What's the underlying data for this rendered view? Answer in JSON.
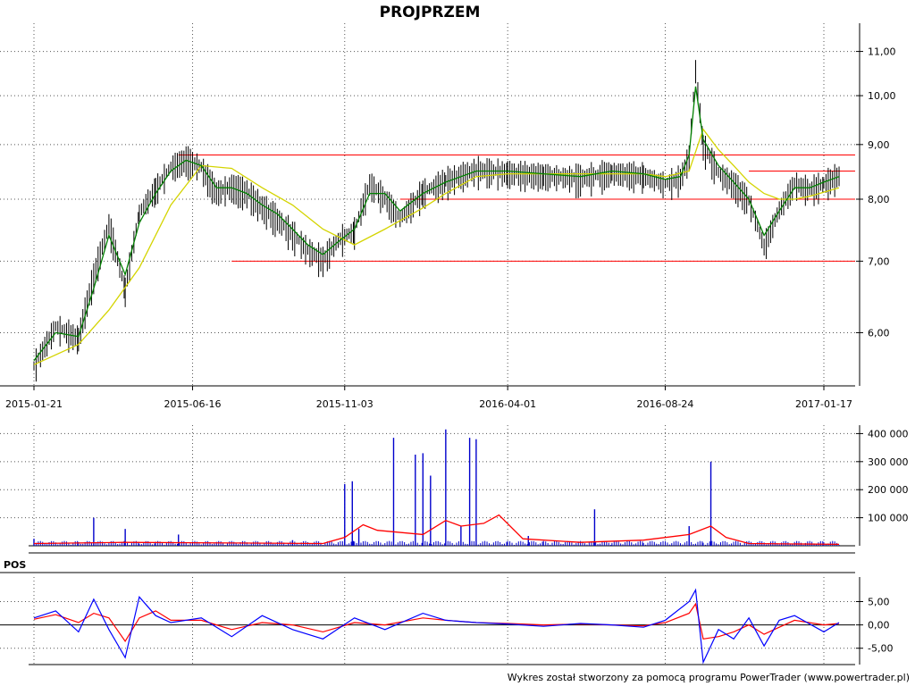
{
  "title": "PROJPRZEM",
  "footer": "Wykres został stworzony za pomocą programu PowerTrader (www.powertrader.pl)",
  "colors": {
    "price_bars": "#000000",
    "ma_short": "#008000",
    "ma_long": "#d4d400",
    "support_lines": "#ff0000",
    "volume_bars": "#0000cc",
    "volume_avg": "#ff0000",
    "pos_line": "#0000ff",
    "pos_signal": "#ff0000",
    "grid": "#555555"
  },
  "chart_data": [
    {
      "panel": "price",
      "type": "line",
      "title": "PROJPRZEM",
      "x_ticks": [
        "2015-01-21",
        "2015-06-16",
        "2015-11-03",
        "2016-04-01",
        "2016-08-24",
        "2017-01-17"
      ],
      "y_ticks": [
        "11,00",
        "10,00",
        "9,00",
        "8,00",
        "7,00",
        "6,00"
      ],
      "y_scale": "log",
      "ylim": [
        5.35,
        11.6
      ],
      "grid": true,
      "series": [
        {
          "style": "bar",
          "x": [
            "2015-01-21",
            "2015-02-10",
            "2015-03-03",
            "2015-03-17",
            "2015-03-31",
            "2015-04-15",
            "2015-04-28",
            "2015-05-13",
            "2015-05-27",
            "2015-06-10",
            "2015-06-24",
            "2015-07-08",
            "2015-07-22",
            "2015-08-05",
            "2015-08-19",
            "2015-09-02",
            "2015-09-16",
            "2015-09-30",
            "2015-10-14",
            "2015-10-28",
            "2015-11-12",
            "2015-11-26",
            "2015-12-10",
            "2015-12-24",
            "2016-01-14",
            "2016-02-04",
            "2016-03-03",
            "2016-04-01",
            "2016-05-04",
            "2016-06-07",
            "2016-07-06",
            "2016-08-04",
            "2016-08-24",
            "2016-09-07",
            "2016-09-15",
            "2016-09-21",
            "2016-09-28",
            "2016-10-12",
            "2016-10-26",
            "2016-11-09",
            "2016-11-23",
            "2016-12-07",
            "2016-12-21",
            "2017-01-04",
            "2017-01-17",
            "2017-01-31"
          ],
          "values": [
            5.6,
            6.1,
            5.95,
            6.8,
            7.6,
            6.6,
            7.8,
            8.2,
            8.6,
            8.75,
            8.6,
            8.15,
            8.25,
            8.15,
            7.9,
            7.7,
            7.45,
            7.2,
            7.05,
            7.35,
            7.5,
            8.3,
            8.05,
            7.7,
            8.15,
            8.35,
            8.55,
            8.5,
            8.45,
            8.4,
            8.5,
            8.45,
            8.3,
            8.4,
            8.8,
            10.6,
            9.0,
            8.5,
            8.3,
            8.0,
            7.25,
            7.85,
            8.3,
            8.2,
            8.3,
            8.45
          ]
        },
        {
          "name": "",
          "style": "line-short-ma",
          "x": [
            "2015-01-21",
            "2015-02-10",
            "2015-03-03",
            "2015-03-17",
            "2015-03-31",
            "2015-04-15",
            "2015-04-28",
            "2015-05-13",
            "2015-05-27",
            "2015-06-10",
            "2015-06-24",
            "2015-07-08",
            "2015-07-22",
            "2015-08-05",
            "2015-08-19",
            "2015-09-02",
            "2015-09-16",
            "2015-09-30",
            "2015-10-14",
            "2015-10-28",
            "2015-11-12",
            "2015-11-26",
            "2015-12-10",
            "2015-12-24",
            "2016-01-14",
            "2016-02-04",
            "2016-03-03",
            "2016-04-01",
            "2016-05-04",
            "2016-06-07",
            "2016-07-06",
            "2016-08-04",
            "2016-08-24",
            "2016-09-07",
            "2016-09-15",
            "2016-09-21",
            "2016-09-28",
            "2016-10-12",
            "2016-10-26",
            "2016-11-09",
            "2016-11-23",
            "2016-12-07",
            "2016-12-21",
            "2017-01-04",
            "2017-01-17",
            "2017-01-31"
          ],
          "values": [
            5.65,
            6.0,
            5.95,
            6.6,
            7.4,
            6.8,
            7.6,
            8.1,
            8.5,
            8.7,
            8.6,
            8.2,
            8.2,
            8.1,
            7.9,
            7.75,
            7.5,
            7.25,
            7.1,
            7.3,
            7.5,
            8.1,
            8.1,
            7.8,
            8.1,
            8.3,
            8.5,
            8.5,
            8.45,
            8.4,
            8.5,
            8.45,
            8.35,
            8.4,
            8.8,
            10.2,
            9.1,
            8.6,
            8.3,
            8.0,
            7.4,
            7.8,
            8.2,
            8.2,
            8.3,
            8.4
          ]
        },
        {
          "name": "",
          "style": "line-long-ma",
          "x": [
            "2015-01-21",
            "2015-03-03",
            "2015-03-31",
            "2015-04-28",
            "2015-05-27",
            "2015-06-24",
            "2015-07-22",
            "2015-08-19",
            "2015-09-16",
            "2015-10-14",
            "2015-11-12",
            "2015-12-10",
            "2016-01-14",
            "2016-02-04",
            "2016-03-03",
            "2016-04-01",
            "2016-05-04",
            "2016-06-07",
            "2016-07-06",
            "2016-08-04",
            "2016-08-24",
            "2016-09-15",
            "2016-09-28",
            "2016-10-12",
            "2016-10-26",
            "2016-11-09",
            "2016-11-23",
            "2016-12-07",
            "2016-12-21",
            "2017-01-04",
            "2017-01-31"
          ],
          "values": [
            5.6,
            5.85,
            6.3,
            6.9,
            7.9,
            8.6,
            8.55,
            8.2,
            7.9,
            7.5,
            7.25,
            7.5,
            7.85,
            8.1,
            8.4,
            8.45,
            8.45,
            8.45,
            8.45,
            8.45,
            8.4,
            8.5,
            9.3,
            8.9,
            8.6,
            8.3,
            8.1,
            8.0,
            8.0,
            8.05,
            8.2
          ]
        }
      ],
      "lines": [
        {
          "value": 8.8,
          "from": "2015-06-03",
          "to": "2017-01-31"
        },
        {
          "value": 8.0,
          "from": "2015-12-24",
          "to": "2017-01-31"
        },
        {
          "value": 7.0,
          "from": "2015-07-22",
          "to": "2017-01-31"
        },
        {
          "value": 8.5,
          "from": "2016-11-09",
          "to": "2017-01-31"
        }
      ]
    },
    {
      "panel": "volume",
      "type": "bar",
      "y_ticks": [
        "400 000",
        "300 000",
        "200 000",
        "100 000"
      ],
      "ylim": [
        0,
        430000
      ],
      "grid": true,
      "spikes": {
        "x": [
          "2015-01-21",
          "2015-03-17",
          "2015-04-15",
          "2015-06-03",
          "2015-09-16",
          "2015-11-03",
          "2015-11-10",
          "2015-11-16",
          "2015-12-18",
          "2016-01-07",
          "2016-01-14",
          "2016-01-21",
          "2016-02-04",
          "2016-02-18",
          "2016-02-26",
          "2016-03-03",
          "2016-04-20",
          "2016-06-20",
          "2016-09-15",
          "2016-10-05"
        ],
        "values": [
          25000,
          100000,
          60000,
          40000,
          20000,
          220000,
          230000,
          60000,
          385000,
          325000,
          330000,
          250000,
          415000,
          70000,
          385000,
          380000,
          35000,
          130000,
          70000,
          300000
        ]
      },
      "avg_series": {
        "name": "",
        "x": [
          "2015-01-21",
          "2015-04-15",
          "2015-07-22",
          "2015-10-14",
          "2015-11-03",
          "2015-11-20",
          "2015-12-03",
          "2016-01-14",
          "2016-02-04",
          "2016-02-18",
          "2016-03-10",
          "2016-03-24",
          "2016-04-15",
          "2016-06-07",
          "2016-08-04",
          "2016-09-15",
          "2016-10-05",
          "2016-10-19",
          "2016-11-09",
          "2017-01-31"
        ],
        "values": [
          8000,
          12000,
          10000,
          8000,
          30000,
          75000,
          55000,
          40000,
          90000,
          70000,
          80000,
          110000,
          25000,
          12000,
          20000,
          40000,
          70000,
          30000,
          8000,
          5000
        ]
      }
    },
    {
      "panel": "oscillator",
      "type": "line",
      "label": "POS",
      "y_ticks": [
        "5,00",
        "0,00",
        "-5,00"
      ],
      "ylim": [
        -8.5,
        9.5
      ],
      "grid": true,
      "series": [
        {
          "name": "",
          "style": "main",
          "x": [
            "2015-01-21",
            "2015-02-10",
            "2015-03-03",
            "2015-03-17",
            "2015-03-31",
            "2015-04-15",
            "2015-04-28",
            "2015-05-13",
            "2015-05-27",
            "2015-06-24",
            "2015-07-22",
            "2015-08-19",
            "2015-09-16",
            "2015-10-14",
            "2015-11-12",
            "2015-12-10",
            "2016-01-14",
            "2016-02-04",
            "2016-03-03",
            "2016-04-01",
            "2016-05-04",
            "2016-06-07",
            "2016-07-06",
            "2016-08-04",
            "2016-08-24",
            "2016-09-15",
            "2016-09-21",
            "2016-09-28",
            "2016-10-12",
            "2016-10-26",
            "2016-11-09",
            "2016-11-23",
            "2016-12-07",
            "2016-12-21",
            "2017-01-17",
            "2017-01-31"
          ],
          "values": [
            1.5,
            3.0,
            -1.5,
            5.5,
            -1.0,
            -7.0,
            6.0,
            2.0,
            0.5,
            1.5,
            -2.5,
            2.0,
            -1.0,
            -3.0,
            1.5,
            -1.0,
            2.5,
            1.0,
            0.5,
            0.2,
            -0.3,
            0.3,
            0.0,
            -0.5,
            1.0,
            5.0,
            7.5,
            -8.0,
            -1.0,
            -3.0,
            1.5,
            -4.5,
            1.0,
            2.0,
            -1.5,
            0.5
          ]
        },
        {
          "name": "",
          "style": "signal",
          "x": [
            "2015-01-21",
            "2015-02-10",
            "2015-03-03",
            "2015-03-17",
            "2015-03-31",
            "2015-04-15",
            "2015-04-28",
            "2015-05-13",
            "2015-05-27",
            "2015-06-24",
            "2015-07-22",
            "2015-08-19",
            "2015-09-16",
            "2015-10-14",
            "2015-11-12",
            "2015-12-10",
            "2016-01-14",
            "2016-02-04",
            "2016-03-03",
            "2016-04-01",
            "2016-05-04",
            "2016-06-07",
            "2016-07-06",
            "2016-08-04",
            "2016-08-24",
            "2016-09-15",
            "2016-09-21",
            "2016-09-28",
            "2016-10-12",
            "2016-10-26",
            "2016-11-09",
            "2016-11-23",
            "2016-12-07",
            "2016-12-21",
            "2017-01-17",
            "2017-01-31"
          ],
          "values": [
            1.2,
            2.2,
            0.5,
            2.5,
            1.5,
            -3.5,
            1.5,
            3.0,
            1.0,
            1.0,
            -1.0,
            0.5,
            0.0,
            -1.5,
            0.5,
            0.0,
            1.5,
            1.0,
            0.5,
            0.3,
            0.0,
            0.2,
            0.0,
            -0.2,
            0.5,
            2.5,
            4.5,
            -3.0,
            -2.5,
            -1.5,
            0.0,
            -2.0,
            -0.5,
            1.0,
            0.0,
            0.3
          ]
        }
      ]
    }
  ]
}
